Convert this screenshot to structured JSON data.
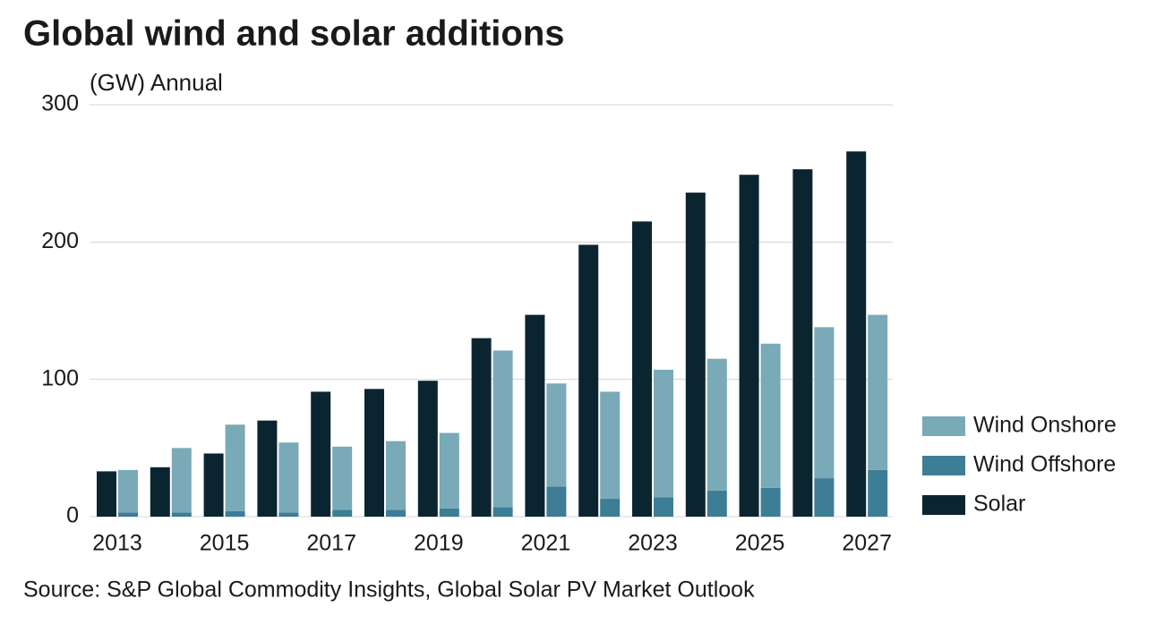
{
  "chart_data": {
    "type": "bar",
    "title": "Global wind and solar additions",
    "subtitle": "(GW) Annual",
    "source": "Source: S&P Global Commodity Insights, Global Solar PV Market Outlook",
    "categories": [
      "2013",
      null,
      "2015",
      null,
      "2017",
      null,
      "2019",
      null,
      "2021",
      null,
      "2023",
      null,
      "2025",
      null,
      "2027"
    ],
    "series": [
      {
        "name": "Wind Onshore",
        "color": "#7aa9b8",
        "values": [
          31,
          47,
          63,
          51,
          46,
          50,
          55,
          114,
          75,
          78,
          93,
          96,
          105,
          110,
          113
        ]
      },
      {
        "name": "Wind Offshore",
        "color": "#3d7d96",
        "values": [
          3,
          3,
          4,
          3,
          5,
          5,
          6,
          7,
          22,
          13,
          14,
          19,
          21,
          28,
          34
        ]
      },
      {
        "name": "Solar",
        "color": "#0b2530",
        "values": [
          33,
          36,
          46,
          70,
          91,
          93,
          99,
          130,
          147,
          198,
          215,
          236,
          249,
          253,
          266
        ]
      }
    ],
    "ylim": [
      0,
      300
    ],
    "yticks": [
      0,
      100,
      200,
      300
    ],
    "grid": true,
    "legend": "right"
  }
}
